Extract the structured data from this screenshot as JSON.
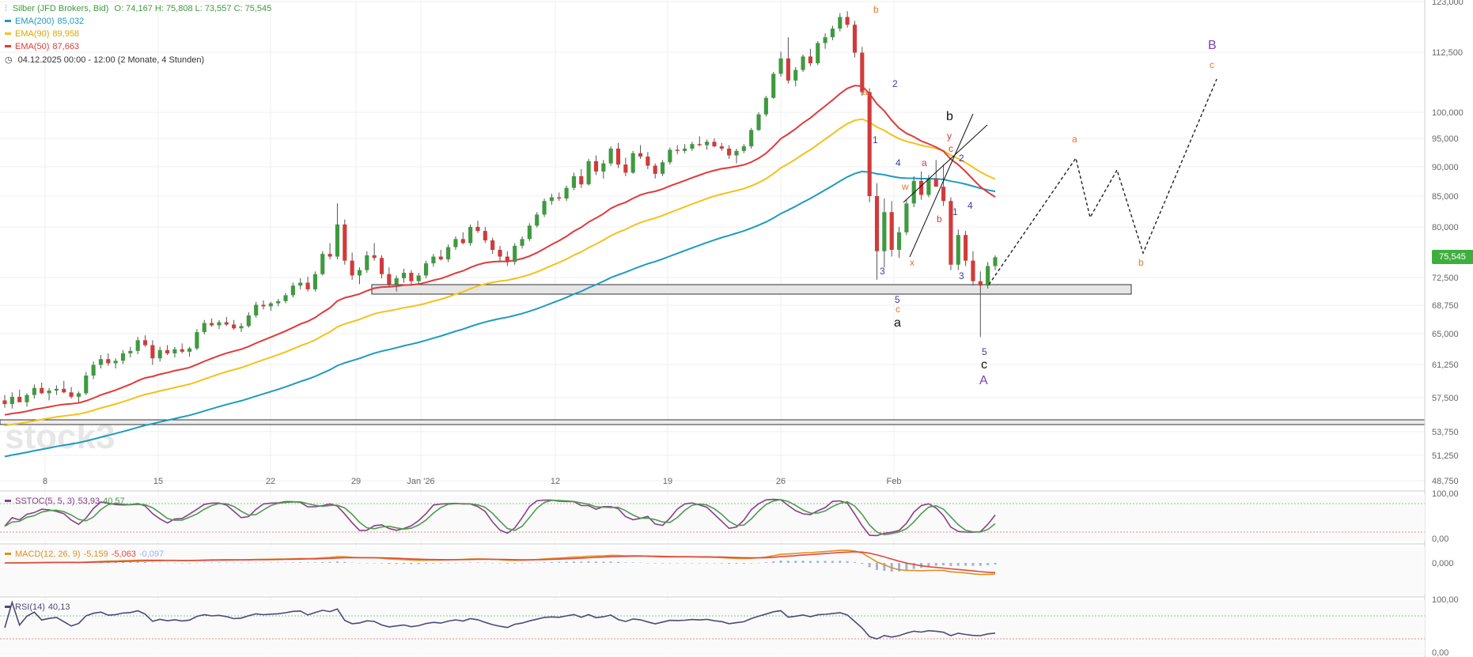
{
  "header": {
    "instrument": "Silber (JFD Brokers, Bid)",
    "ohlc": "O: 74,167  H: 75,808  L: 73,557  C: 75,545",
    "ema200_label": "EMA(200)",
    "ema200_value": "85,032",
    "ema90_label": "EMA(90)",
    "ema90_value": "89,958",
    "ema50_label": "EMA(50)",
    "ema50_value": "87,663",
    "range": "04.12.2025 00:00 - 12:00   (2 Monate, 4 Stunden)",
    "watermark": "stock3"
  },
  "colors": {
    "up": "#3f9a3f",
    "down": "#d23a3a",
    "ema200": "#1e9bbf",
    "ema90": "#f5c11a",
    "ema50": "#e03a3a",
    "wave_blue": "#3d3d9e",
    "wave_orange": "#e8762a",
    "wave_purple": "#7a3fb0",
    "wave_red": "#d23a3a",
    "stoch_k": "#8a3f8a",
    "stoch_d": "#4f9a4f",
    "macd": "#e09020",
    "macd_signal": "#e04a3a",
    "macd_hist": "#9db4e0",
    "rsi": "#4a4a7a",
    "last_price_bg": "#3fae3f"
  },
  "chart_data": [
    {
      "type": "candlestick",
      "title": "Silber (JFD Brokers, Bid)",
      "y_ticks": [
        "123,000",
        "112,500",
        "100,000",
        "95,000",
        "90,000",
        "85,000",
        "80,000",
        "72,500",
        "68,750",
        "65,000",
        "61,250",
        "57,500",
        "53,750",
        "51,250",
        "48,750"
      ],
      "y_tick_values": [
        123,
        112.5,
        100,
        95,
        90,
        85,
        80,
        72.5,
        68.75,
        65,
        61.25,
        57.5,
        53.75,
        51.25,
        48.75
      ],
      "x_ticks": [
        "8",
        "15",
        "22",
        "29",
        "Jan '26",
        "12",
        "19",
        "26",
        "Feb"
      ],
      "last_price": "75,545",
      "candles_ohlc": [
        [
          57.2,
          57.8,
          56.4,
          56.8
        ],
        [
          56.8,
          58.1,
          56.3,
          57.6
        ],
        [
          57.6,
          58.4,
          57.1,
          57.0
        ],
        [
          57.0,
          58.0,
          56.5,
          57.8
        ],
        [
          57.8,
          59.0,
          57.4,
          58.6
        ],
        [
          58.6,
          59.2,
          57.9,
          58.0
        ],
        [
          58.0,
          58.6,
          57.2,
          58.3
        ],
        [
          58.3,
          58.9,
          57.8,
          58.5
        ],
        [
          58.5,
          59.4,
          58.0,
          58.1
        ],
        [
          58.1,
          58.7,
          57.4,
          57.6
        ],
        [
          57.6,
          58.2,
          57.0,
          58.0
        ],
        [
          58.0,
          60.4,
          57.8,
          60.0
        ],
        [
          60.0,
          61.6,
          59.6,
          61.2
        ],
        [
          61.2,
          62.4,
          60.8,
          61.9
        ],
        [
          61.9,
          62.6,
          61.1,
          61.4
        ],
        [
          61.4,
          62.0,
          60.8,
          61.7
        ],
        [
          61.7,
          63.0,
          61.3,
          62.6
        ],
        [
          62.6,
          63.4,
          62.1,
          62.9
        ],
        [
          62.9,
          64.6,
          62.5,
          64.2
        ],
        [
          64.2,
          64.8,
          63.4,
          63.6
        ],
        [
          63.6,
          64.2,
          61.2,
          62.0
        ],
        [
          62.0,
          63.4,
          61.6,
          63.0
        ],
        [
          63.0,
          63.6,
          62.4,
          62.6
        ],
        [
          62.6,
          63.4,
          62.1,
          63.1
        ],
        [
          63.1,
          63.8,
          62.6,
          62.8
        ],
        [
          62.8,
          63.4,
          62.2,
          63.2
        ],
        [
          63.2,
          65.6,
          63.0,
          65.2
        ],
        [
          65.2,
          66.8,
          64.9,
          66.4
        ],
        [
          66.4,
          67.0,
          65.9,
          66.1
        ],
        [
          66.1,
          66.8,
          65.6,
          66.5
        ],
        [
          66.5,
          67.2,
          66.0,
          66.2
        ],
        [
          66.2,
          66.8,
          65.5,
          65.7
        ],
        [
          65.7,
          66.4,
          65.2,
          66.0
        ],
        [
          66.0,
          67.8,
          65.8,
          67.4
        ],
        [
          67.4,
          69.2,
          67.1,
          68.8
        ],
        [
          68.8,
          69.4,
          68.2,
          68.6
        ],
        [
          68.6,
          69.2,
          68.0,
          69.0
        ],
        [
          69.0,
          69.6,
          68.6,
          69.3
        ],
        [
          69.3,
          70.4,
          69.0,
          70.1
        ],
        [
          70.1,
          71.8,
          69.8,
          71.4
        ],
        [
          71.4,
          72.4,
          70.9,
          71.8
        ],
        [
          71.8,
          72.6,
          70.6,
          70.9
        ],
        [
          70.9,
          73.4,
          70.6,
          73.0
        ],
        [
          73.0,
          76.4,
          72.8,
          76.0
        ],
        [
          76.0,
          77.6,
          75.2,
          75.6
        ],
        [
          75.6,
          83.8,
          75.2,
          80.4
        ],
        [
          80.4,
          81.2,
          74.4,
          75.0
        ],
        [
          75.0,
          76.2,
          72.2,
          72.8
        ],
        [
          72.8,
          74.0,
          71.6,
          73.6
        ],
        [
          73.6,
          76.4,
          73.2,
          75.8
        ],
        [
          75.8,
          77.6,
          75.0,
          75.4
        ],
        [
          75.4,
          75.8,
          72.4,
          73.0
        ],
        [
          73.0,
          74.0,
          71.2,
          71.6
        ],
        [
          71.6,
          72.8,
          70.6,
          72.4
        ],
        [
          72.4,
          73.8,
          71.8,
          73.2
        ],
        [
          73.2,
          73.6,
          71.4,
          72.0
        ],
        [
          72.0,
          73.2,
          71.6,
          72.8
        ],
        [
          72.8,
          75.0,
          72.4,
          74.6
        ],
        [
          74.6,
          76.0,
          74.1,
          75.6
        ],
        [
          75.6,
          76.6,
          75.0,
          75.2
        ],
        [
          75.2,
          77.4,
          74.8,
          77.0
        ],
        [
          77.0,
          78.6,
          76.6,
          78.2
        ],
        [
          78.2,
          79.2,
          77.4,
          77.6
        ],
        [
          77.6,
          80.4,
          77.2,
          80.0
        ],
        [
          80.0,
          81.0,
          79.1,
          79.4
        ],
        [
          79.4,
          80.0,
          77.6,
          78.0
        ],
        [
          78.0,
          78.4,
          76.0,
          76.6
        ],
        [
          76.6,
          77.2,
          74.8,
          75.6
        ],
        [
          75.6,
          76.4,
          74.2,
          74.8
        ],
        [
          74.8,
          77.6,
          74.4,
          77.2
        ],
        [
          77.2,
          78.6,
          76.8,
          78.2
        ],
        [
          78.2,
          80.6,
          77.9,
          80.2
        ],
        [
          80.2,
          82.4,
          79.9,
          82.0
        ],
        [
          82.0,
          84.6,
          81.6,
          84.2
        ],
        [
          84.2,
          85.4,
          83.6,
          84.8
        ],
        [
          84.8,
          85.6,
          84.2,
          84.6
        ],
        [
          84.6,
          86.8,
          84.2,
          86.4
        ],
        [
          86.4,
          89.0,
          86.0,
          88.4
        ],
        [
          88.4,
          89.6,
          86.4,
          87.0
        ],
        [
          87.0,
          91.4,
          86.8,
          91.0
        ],
        [
          91.0,
          92.0,
          88.6,
          89.2
        ],
        [
          89.2,
          91.2,
          88.0,
          90.6
        ],
        [
          90.6,
          93.6,
          90.2,
          93.2
        ],
        [
          93.2,
          94.2,
          89.8,
          90.4
        ],
        [
          90.4,
          91.6,
          88.4,
          89.0
        ],
        [
          89.0,
          92.8,
          88.8,
          92.4
        ],
        [
          92.4,
          93.8,
          91.4,
          91.8
        ],
        [
          91.8,
          92.6,
          89.6,
          90.2
        ],
        [
          90.2,
          90.6,
          88.0,
          88.8
        ],
        [
          88.8,
          91.2,
          88.4,
          90.8
        ],
        [
          90.8,
          93.4,
          90.4,
          93.0
        ],
        [
          93.0,
          93.8,
          92.2,
          92.8
        ],
        [
          92.8,
          94.0,
          92.4,
          93.2
        ],
        [
          93.2,
          94.4,
          92.8,
          94.0
        ],
        [
          94.0,
          95.4,
          93.6,
          93.8
        ],
        [
          93.8,
          94.8,
          93.0,
          94.4
        ],
        [
          94.4,
          95.0,
          93.4,
          93.6
        ],
        [
          93.6,
          94.2,
          92.8,
          93.2
        ],
        [
          93.2,
          93.8,
          91.4,
          92.0
        ],
        [
          92.0,
          93.2,
          90.6,
          92.8
        ],
        [
          92.8,
          94.0,
          92.4,
          93.6
        ],
        [
          93.6,
          97.0,
          93.2,
          96.6
        ],
        [
          96.6,
          100.0,
          96.4,
          99.6
        ],
        [
          99.6,
          103.4,
          99.2,
          103.0
        ],
        [
          103.0,
          108.4,
          102.8,
          108.0
        ],
        [
          108.0,
          112.6,
          107.4,
          111.2
        ],
        [
          111.2,
          115.6,
          106.0,
          106.6
        ],
        [
          106.6,
          109.4,
          105.4,
          108.8
        ],
        [
          108.8,
          112.0,
          108.4,
          111.6
        ],
        [
          111.6,
          113.2,
          109.6,
          110.2
        ],
        [
          110.2,
          114.8,
          109.8,
          114.4
        ],
        [
          114.4,
          116.4,
          113.2,
          115.6
        ],
        [
          115.6,
          118.0,
          115.0,
          117.4
        ],
        [
          117.4,
          120.6,
          116.8,
          119.8
        ],
        [
          119.8,
          121.0,
          117.6,
          118.2
        ],
        [
          118.2,
          119.0,
          111.4,
          112.4
        ],
        [
          112.4,
          113.6,
          103.4,
          104.2
        ],
        [
          104.2,
          105.0,
          84.0,
          85.0
        ],
        [
          85.0,
          87.2,
          72.2,
          76.4
        ],
        [
          76.4,
          84.6,
          74.0,
          82.4
        ],
        [
          82.4,
          84.2,
          75.6,
          76.6
        ],
        [
          76.6,
          80.0,
          75.4,
          79.2
        ],
        [
          79.2,
          84.4,
          78.8,
          83.8
        ],
        [
          83.8,
          88.4,
          83.2,
          87.6
        ],
        [
          87.6,
          89.2,
          84.4,
          85.2
        ],
        [
          85.2,
          88.6,
          84.8,
          88.0
        ],
        [
          88.0,
          91.2,
          87.4,
          86.6
        ],
        [
          86.6,
          90.4,
          83.4,
          84.2
        ],
        [
          84.2,
          84.8,
          73.6,
          74.4
        ],
        [
          74.4,
          79.6,
          73.6,
          78.8
        ],
        [
          78.8,
          79.4,
          74.2,
          75.0
        ],
        [
          75.0,
          76.4,
          71.4,
          72.0
        ],
        [
          72.0,
          73.4,
          64.6,
          71.4
        ],
        [
          71.4,
          74.8,
          71.0,
          74.2
        ],
        [
          74.2,
          75.8,
          73.6,
          75.5
        ]
      ]
    },
    {
      "type": "line",
      "title": "SSTOC(5, 5, 3)",
      "value_k": "53,93",
      "value_d": "40,57",
      "y_ticks": [
        "100,00",
        "0,00"
      ]
    },
    {
      "type": "line",
      "title": "MACD(12, 26, 9)",
      "value_macd": "-5,159",
      "value_signal": "-5,063",
      "value_hist": "-0,097",
      "y_ticks": [
        "0,000"
      ]
    },
    {
      "type": "line",
      "title": "RSI(14)",
      "value": "40,13",
      "y_ticks": [
        "100,00",
        "0,00"
      ]
    }
  ],
  "waves": {
    "b_top": "b",
    "a_left": "a",
    "w2": "2",
    "w1": "1",
    "w4": "4",
    "w3": "3",
    "w5": "5",
    "c_small": "c",
    "a_big": "a",
    "b_big": "b",
    "a_red": "a",
    "w_red": "w",
    "x_orange": "x",
    "y_red": "y",
    "c_red": "c",
    "b_red": "b",
    "w2b": "2",
    "w1b": "1",
    "w4b": "4",
    "w3b": "3",
    "w5b": "5",
    "c_big": "c",
    "A_big": "A",
    "proj_a": "a",
    "proj_b": "b",
    "proj_c": "c",
    "B_big": "B"
  }
}
